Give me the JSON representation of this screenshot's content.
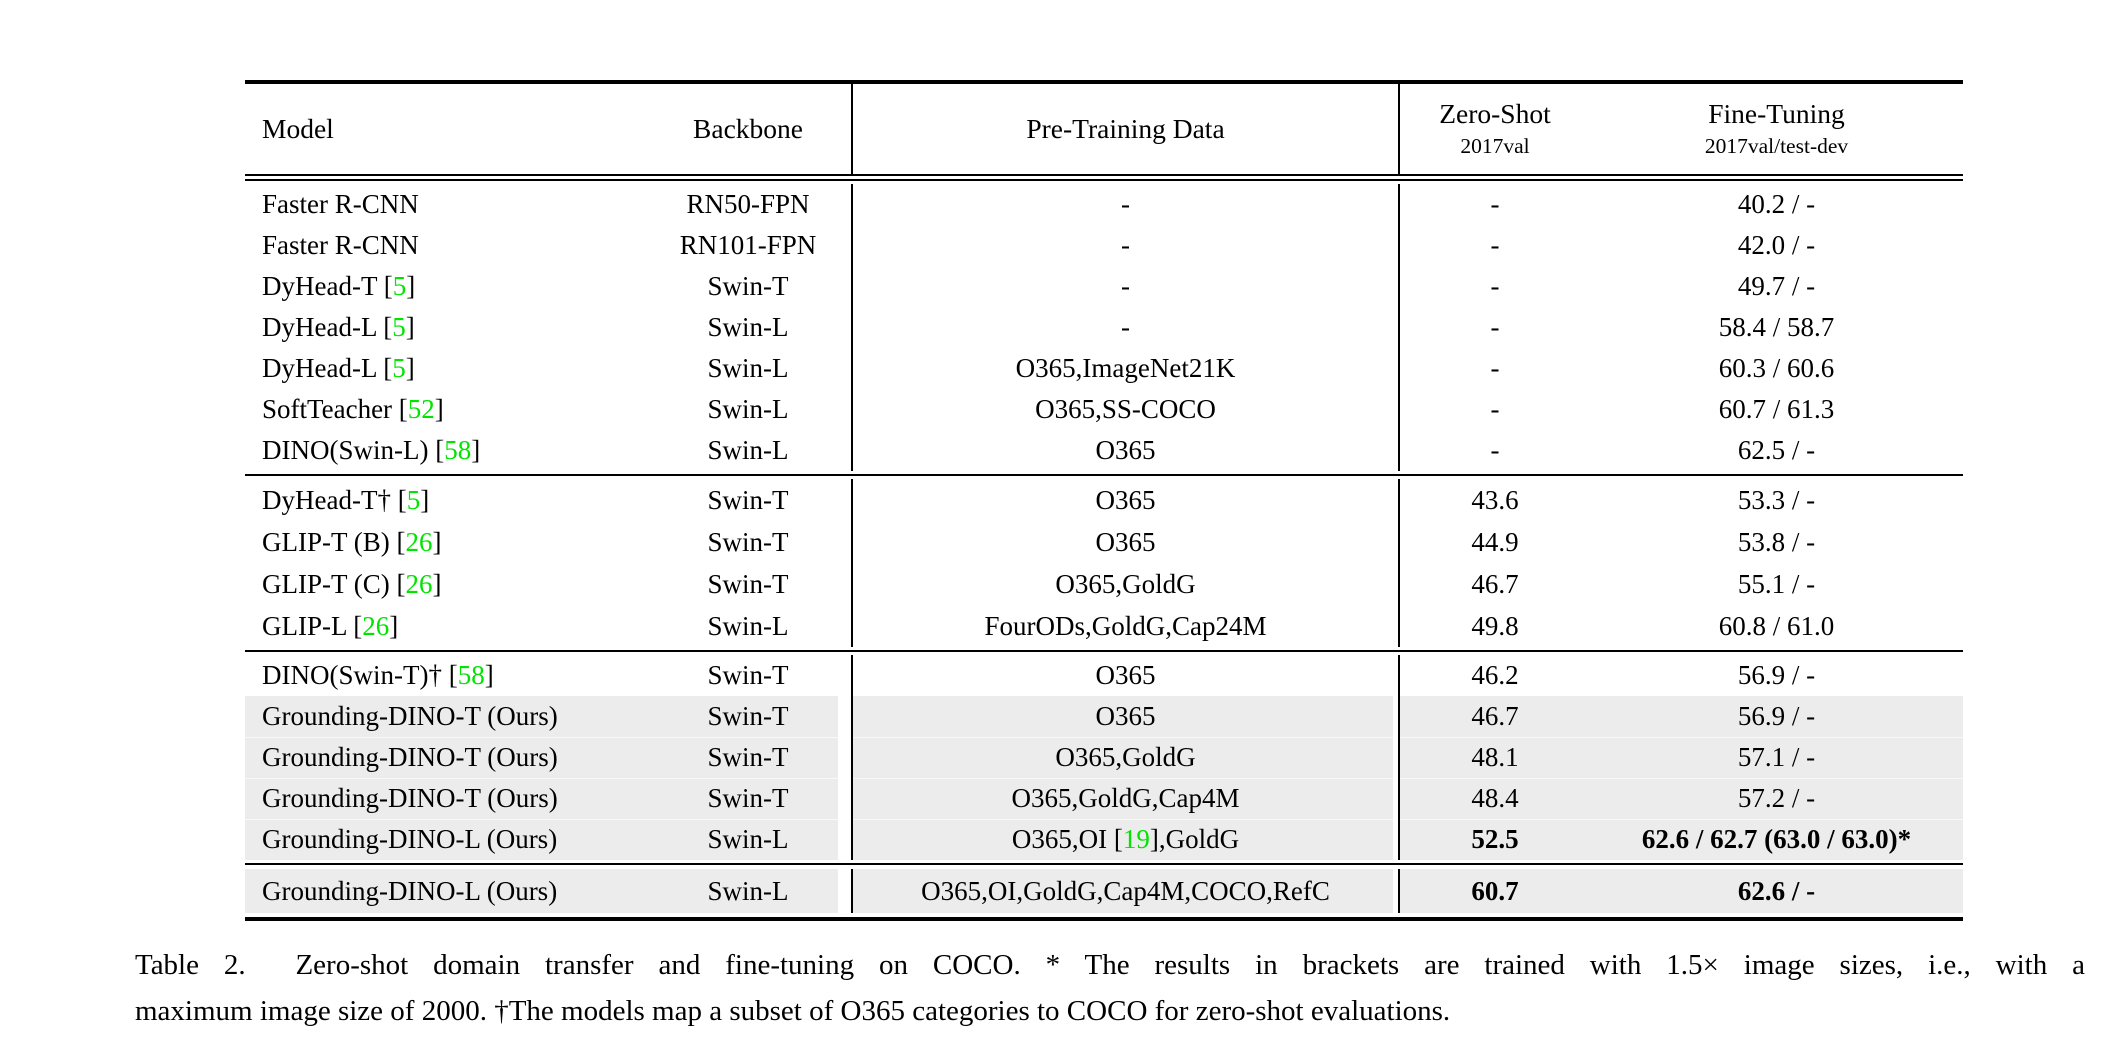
{
  "colors": {
    "cite_green": "#00e400",
    "row_highlight": "#ececec",
    "rule_black": "#000000"
  },
  "header": {
    "model": "Model",
    "backbone": "Backbone",
    "pretrain": "Pre-Training Data",
    "zero_shot_title": "Zero-Shot",
    "zero_shot_sub": "2017val",
    "fine_tuning_title": "Fine-Tuning",
    "fine_tuning_sub": "2017val/test-dev"
  },
  "blocks": [
    {
      "rows": [
        {
          "model": [
            {
              "t": "Faster R-CNN"
            }
          ],
          "backbone": "RN50-FPN",
          "pretrain": [
            {
              "t": "-"
            }
          ],
          "zero_shot": "-",
          "fine_tuning": "40.2 / -"
        },
        {
          "model": [
            {
              "t": "Faster R-CNN"
            }
          ],
          "backbone": "RN101-FPN",
          "pretrain": [
            {
              "t": "-"
            }
          ],
          "zero_shot": "-",
          "fine_tuning": "42.0 / -"
        },
        {
          "model": [
            {
              "t": "DyHead-T ["
            },
            {
              "t": "5",
              "g": true
            },
            {
              "t": "]"
            }
          ],
          "backbone": "Swin-T",
          "pretrain": [
            {
              "t": "-"
            }
          ],
          "zero_shot": "-",
          "fine_tuning": "49.7 / -"
        },
        {
          "model": [
            {
              "t": "DyHead-L ["
            },
            {
              "t": "5",
              "g": true
            },
            {
              "t": "]"
            }
          ],
          "backbone": "Swin-L",
          "pretrain": [
            {
              "t": "-"
            }
          ],
          "zero_shot": "-",
          "fine_tuning": "58.4 / 58.7"
        },
        {
          "model": [
            {
              "t": "DyHead-L ["
            },
            {
              "t": "5",
              "g": true
            },
            {
              "t": "]"
            }
          ],
          "backbone": "Swin-L",
          "pretrain": [
            {
              "t": "O365,ImageNet21K"
            }
          ],
          "zero_shot": "-",
          "fine_tuning": "60.3 / 60.6"
        },
        {
          "model": [
            {
              "t": "SoftTeacher ["
            },
            {
              "t": "52",
              "g": true
            },
            {
              "t": "]"
            }
          ],
          "backbone": "Swin-L",
          "pretrain": [
            {
              "t": "O365,SS-COCO"
            }
          ],
          "zero_shot": "-",
          "fine_tuning": "60.7 / 61.3"
        },
        {
          "model": [
            {
              "t": "DINO(Swin-L) ["
            },
            {
              "t": "58",
              "g": true
            },
            {
              "t": "]"
            }
          ],
          "backbone": "Swin-L",
          "pretrain": [
            {
              "t": "O365"
            }
          ],
          "zero_shot": "-",
          "fine_tuning": "62.5 / -"
        }
      ]
    },
    {
      "rows": [
        {
          "model": [
            {
              "t": "DyHead-T† ["
            },
            {
              "t": "5",
              "g": true
            },
            {
              "t": "]"
            }
          ],
          "backbone": "Swin-T",
          "pretrain": [
            {
              "t": "O365"
            }
          ],
          "zero_shot": "43.6",
          "fine_tuning": "53.3 / -"
        },
        {
          "model": [
            {
              "t": "GLIP-T (B) ["
            },
            {
              "t": "26",
              "g": true
            },
            {
              "t": "]"
            }
          ],
          "backbone": "Swin-T",
          "pretrain": [
            {
              "t": "O365"
            }
          ],
          "zero_shot": "44.9",
          "fine_tuning": "53.8 / -"
        },
        {
          "model": [
            {
              "t": "GLIP-T (C) ["
            },
            {
              "t": "26",
              "g": true
            },
            {
              "t": "]"
            }
          ],
          "backbone": "Swin-T",
          "pretrain": [
            {
              "t": "O365,GoldG"
            }
          ],
          "zero_shot": "46.7",
          "fine_tuning": "55.1 / -"
        },
        {
          "model": [
            {
              "t": "GLIP-L ["
            },
            {
              "t": "26",
              "g": true
            },
            {
              "t": "]"
            }
          ],
          "backbone": "Swin-L",
          "pretrain": [
            {
              "t": "FourODs,GoldG,Cap24M"
            }
          ],
          "zero_shot": "49.8",
          "fine_tuning": "60.8 / 61.0"
        }
      ]
    },
    {
      "rows": [
        {
          "model": [
            {
              "t": "DINO(Swin-T)† ["
            },
            {
              "t": "58",
              "g": true
            },
            {
              "t": "]"
            }
          ],
          "backbone": "Swin-T",
          "pretrain": [
            {
              "t": "O365"
            }
          ],
          "zero_shot": "46.2",
          "fine_tuning": "56.9 / -"
        },
        {
          "model": [
            {
              "t": "Grounding-DINO-T (Ours)"
            }
          ],
          "backbone": "Swin-T",
          "pretrain": [
            {
              "t": "O365"
            }
          ],
          "zero_shot": "46.7",
          "fine_tuning": "56.9 / -"
        },
        {
          "model": [
            {
              "t": "Grounding-DINO-T (Ours)"
            }
          ],
          "backbone": "Swin-T",
          "pretrain": [
            {
              "t": "O365,GoldG"
            }
          ],
          "zero_shot": "48.1",
          "fine_tuning": "57.1 / -"
        },
        {
          "model": [
            {
              "t": "Grounding-DINO-T (Ours)"
            }
          ],
          "backbone": "Swin-T",
          "pretrain": [
            {
              "t": "O365,GoldG,Cap4M"
            }
          ],
          "zero_shot": "48.4",
          "fine_tuning": "57.2 / -"
        },
        {
          "model": [
            {
              "t": "Grounding-DINO-L (Ours)"
            }
          ],
          "backbone": "Swin-L",
          "pretrain": [
            {
              "t": "O365,OI ["
            },
            {
              "t": "19",
              "g": true
            },
            {
              "t": "],GoldG"
            }
          ],
          "zero_shot": "52.5",
          "fine_tuning": "62.6 / 62.7 (63.0 / 63.0)*"
        }
      ]
    },
    {
      "rows": [
        {
          "model": [
            {
              "t": "Grounding-DINO-L (Ours)"
            }
          ],
          "backbone": "Swin-L",
          "pretrain": [
            {
              "t": "O365,OI,GoldG,Cap4M,COCO,RefC"
            }
          ],
          "zero_shot": "60.7",
          "fine_tuning": "62.6 / -"
        }
      ]
    }
  ],
  "caption": {
    "line1": "Table 2.  Zero-shot domain transfer and fine-tuning on COCO. * The results in brackets are trained with 1.5× image sizes, i.e., with a",
    "line2": "maximum image size of 2000. †The models map a subset of O365 categories to COCO for zero-shot evaluations."
  }
}
